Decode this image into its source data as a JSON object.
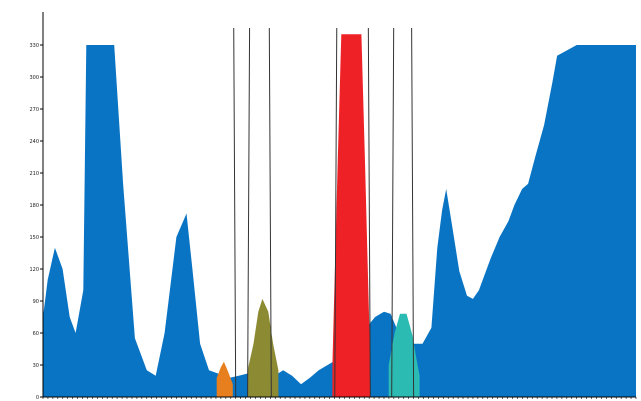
{
  "chart_data": {
    "type": "area",
    "title": "",
    "xlabel": "",
    "ylabel": "",
    "xlim": [
      0,
      100
    ],
    "ylim": [
      0,
      340
    ],
    "yticks": [
      0,
      30,
      60,
      90,
      120,
      150,
      180,
      210,
      240,
      270,
      300,
      330
    ],
    "ytick_labels": [
      "0",
      "30",
      "60",
      "90",
      "120",
      "150",
      "180",
      "210",
      "240",
      "270",
      "300",
      "330"
    ],
    "grid": false,
    "legend": "none",
    "series": [
      {
        "color": "#0a74c4",
        "x": [
          0,
          0.8,
          2,
          3.3,
          4.5,
          5.5,
          6.8,
          7.3,
          7.9,
          9,
          10.5,
          12,
          13.5,
          15.5,
          17.5,
          19,
          20.5,
          22.5,
          24.2,
          25.2,
          26.5,
          28,
          29.5,
          30.5,
          31.5,
          33,
          34.5,
          36,
          37.5,
          39,
          40.5,
          42,
          43.5,
          45,
          46.5,
          48,
          49.5,
          50.3,
          51,
          52,
          53,
          54.5,
          56,
          57.5,
          58.6,
          59.6,
          61,
          62.6,
          64,
          65.5,
          66.5,
          67.3,
          68,
          69,
          70.2,
          71.5,
          72.5,
          73.5,
          74.5,
          75.5,
          77,
          78.5,
          79.5,
          80.8,
          81.8,
          83,
          84.5,
          85.9,
          86.7,
          90,
          95,
          100
        ],
        "y": [
          75,
          110,
          140,
          120,
          75,
          60,
          100,
          330,
          330,
          330,
          330,
          330,
          200,
          55,
          25,
          20,
          60,
          150,
          172,
          120,
          50,
          25,
          22,
          20,
          18,
          20,
          22,
          23,
          20,
          20,
          25,
          20,
          12,
          18,
          25,
          30,
          35,
          45,
          50,
          40,
          50,
          65,
          75,
          80,
          78,
          65,
          55,
          50,
          50,
          65,
          140,
          175,
          195,
          160,
          118,
          95,
          92,
          100,
          115,
          130,
          150,
          165,
          180,
          195,
          200,
          225,
          255,
          295,
          320,
          330,
          330,
          330
        ]
      }
    ],
    "gated_peaks": [
      {
        "color": "#e87f1e",
        "x": [
          29.3,
          30,
          30.5,
          31.2,
          32
        ],
        "y": [
          18,
          28,
          33,
          24,
          12
        ]
      },
      {
        "color": "#8c8b34",
        "x": [
          34.5,
          35.5,
          36.3,
          37,
          38,
          38.8,
          39.7
        ],
        "y": [
          25,
          50,
          80,
          92,
          80,
          50,
          25
        ]
      },
      {
        "color": "#ee2127",
        "x": [
          48.8,
          49.7,
          50.3,
          53.7,
          54.3,
          55.2
        ],
        "y": [
          30,
          220,
          340,
          340,
          220,
          30
        ]
      },
      {
        "color": "#2bbbb3",
        "x": [
          58.3,
          59.3,
          60.2,
          61.3,
          62.3,
          63,
          63.5
        ],
        "y": [
          30,
          60,
          78,
          78,
          58,
          35,
          20
        ]
      }
    ],
    "gates": [
      32.5,
      34.5,
      38.5,
      49.2,
      55.2,
      58.8,
      62.5
    ]
  }
}
